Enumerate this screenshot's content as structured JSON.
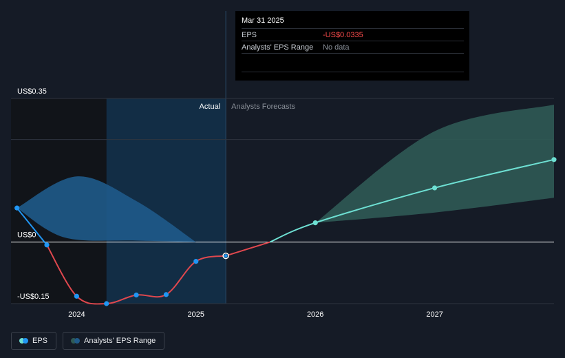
{
  "colors": {
    "background": "#151b26",
    "eps_positive": "#2196f3",
    "eps_negative": "#e0484e",
    "forecast_line": "#6ee0d3",
    "forecast_range": "#2f5a55",
    "past_range": "#1f5a89",
    "highlight": "#13314d"
  },
  "tooltip": {
    "date": "Mar 31 2025",
    "rows": [
      {
        "label": "EPS",
        "value": "-US$0.0335"
      },
      {
        "label": "Analysts' EPS Range",
        "value": "No data"
      }
    ]
  },
  "regions": {
    "actual": "Actual",
    "forecast": "Analysts Forecasts"
  },
  "legend": {
    "eps": "EPS",
    "range": "Analysts' EPS Range"
  },
  "chart_data": {
    "type": "line",
    "title": "",
    "xlabel": "",
    "ylabel": "",
    "ylim": [
      -0.15,
      0.35
    ],
    "y_ticks": [
      {
        "value": 0.35,
        "label": "US$0.35"
      },
      {
        "value": 0,
        "label": "US$0"
      },
      {
        "value": -0.15,
        "label": "-US$0.15"
      }
    ],
    "x_ticks": [
      {
        "value": 2024,
        "label": "2024"
      },
      {
        "value": 2025,
        "label": "2025"
      },
      {
        "value": 2026,
        "label": "2026"
      },
      {
        "value": 2027,
        "label": "2027"
      }
    ],
    "xlim": [
      2023.45,
      2028.0
    ],
    "actual_forecast_boundary": 2025.25,
    "highlight_start": 2024.25,
    "series": [
      {
        "name": "EPS",
        "kind": "actual",
        "points": [
          {
            "x": 2023.5,
            "y": 0.083
          },
          {
            "x": 2023.75,
            "y": -0.007
          },
          {
            "x": 2024.0,
            "y": -0.132
          },
          {
            "x": 2024.25,
            "y": -0.15
          },
          {
            "x": 2024.5,
            "y": -0.129
          },
          {
            "x": 2024.75,
            "y": -0.128
          },
          {
            "x": 2025.0,
            "y": -0.047
          },
          {
            "x": 2025.25,
            "y": -0.0335
          }
        ]
      },
      {
        "name": "EPS",
        "kind": "forecast",
        "points": [
          {
            "x": 2025.25,
            "y": -0.0335
          },
          {
            "x": 2026.0,
            "y": 0.047
          },
          {
            "x": 2027.0,
            "y": 0.132
          },
          {
            "x": 2028.0,
            "y": 0.201
          }
        ]
      }
    ],
    "past_range": {
      "upper": [
        {
          "x": 2023.5,
          "y": 0.083
        },
        {
          "x": 2024.0,
          "y": 0.16
        },
        {
          "x": 2024.5,
          "y": 0.1
        },
        {
          "x": 2025.0,
          "y": 0.0
        }
      ],
      "lower": [
        {
          "x": 2023.5,
          "y": 0.083
        },
        {
          "x": 2023.9,
          "y": 0.011
        },
        {
          "x": 2024.5,
          "y": 0.004
        },
        {
          "x": 2025.0,
          "y": 0.0
        }
      ]
    },
    "forecast_range": {
      "upper": [
        {
          "x": 2026.0,
          "y": 0.047
        },
        {
          "x": 2027.0,
          "y": 0.27
        },
        {
          "x": 2028.0,
          "y": 0.335
        }
      ],
      "lower": [
        {
          "x": 2026.0,
          "y": 0.047
        },
        {
          "x": 2027.0,
          "y": 0.072
        },
        {
          "x": 2028.0,
          "y": 0.108
        }
      ]
    }
  }
}
